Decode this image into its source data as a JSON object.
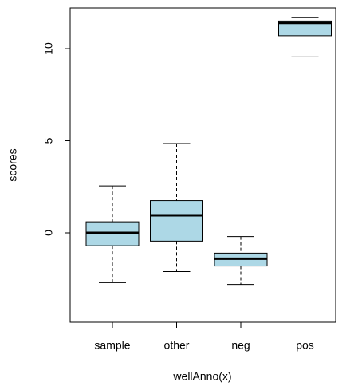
{
  "chart_data": {
    "type": "boxplot",
    "x_label": "wellAnno(x)",
    "y_label": "scores",
    "categories": [
      "sample",
      "other",
      "neg",
      "pos"
    ],
    "boxes": [
      {
        "min": -2.7,
        "q1": -0.7,
        "median": 0,
        "q3": 0.6,
        "max": 2.55
      },
      {
        "min": -2.1,
        "q1": -0.45,
        "median": 0.95,
        "q3": 1.75,
        "max": 4.85
      },
      {
        "min": -2.8,
        "q1": -1.8,
        "median": -1.4,
        "q3": -1.1,
        "max": -0.2
      },
      {
        "min": 9.55,
        "q1": 10.7,
        "median": 11.4,
        "q3": 11.5,
        "max": 11.7
      }
    ],
    "color": "#add8e6",
    "ylim": [
      -4.85,
      12.21
    ],
    "yticks": [
      0,
      5,
      10
    ]
  }
}
